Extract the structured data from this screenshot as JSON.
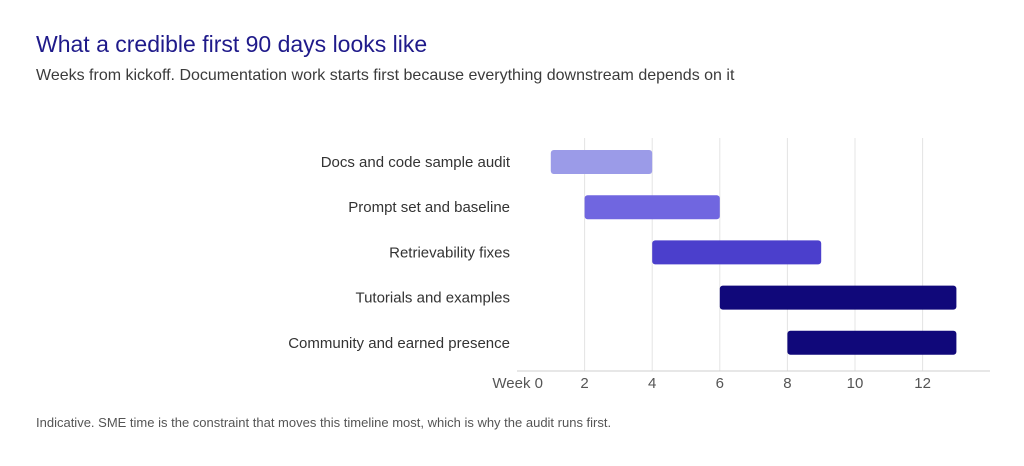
{
  "chart_data": {
    "type": "bar",
    "orientation": "horizontal-range",
    "title": "What a credible first 90 days looks like",
    "subtitle": "Weeks from kickoff. Documentation work starts first because everything downstream depends on it",
    "footnote": "Indicative. SME time is the constraint that moves this timeline most, which is why the audit runs first.",
    "categories": [
      "Docs and code sample audit",
      "Prompt set and baseline",
      "Retrievability fixes",
      "Tutorials and examples",
      "Community and earned presence"
    ],
    "ranges": [
      [
        1,
        4
      ],
      [
        2,
        6
      ],
      [
        4,
        9
      ],
      [
        6,
        13
      ],
      [
        8,
        13
      ]
    ],
    "colors": [
      "#9b9be8",
      "#7066e0",
      "#4b3fcc",
      "#10087a",
      "#10087a"
    ],
    "x_ticks": [
      0,
      2,
      4,
      6,
      8,
      10,
      12
    ],
    "x_tick_labels": [
      "Week 0",
      "2",
      "4",
      "6",
      "8",
      "10",
      "12"
    ],
    "xlim": [
      0,
      13.5
    ],
    "grid": true
  }
}
